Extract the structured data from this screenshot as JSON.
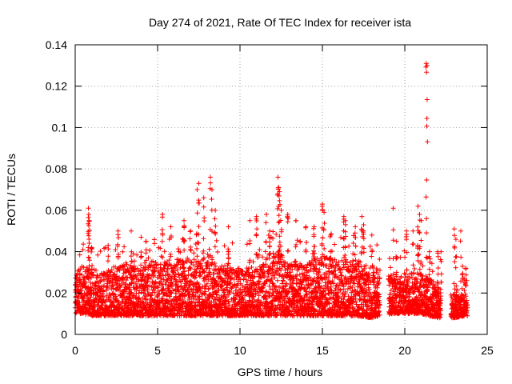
{
  "chart_data": {
    "type": "scatter",
    "title": "Day 274 of 2021, Rate Of TEC Index for receiver ista",
    "xlabel": "GPS time / hours",
    "ylabel": "ROTI / TECUs",
    "xlim": [
      0,
      25
    ],
    "ylim": [
      0,
      0.14
    ],
    "xticks": [
      0,
      5,
      10,
      15,
      20,
      25
    ],
    "yticks": [
      0,
      0.02,
      0.04,
      0.06,
      0.08,
      0.1,
      0.12,
      0.14
    ],
    "xtick_labels": [
      "0",
      "5",
      "10",
      "15",
      "20",
      "25"
    ],
    "ytick_labels": [
      "0",
      "0.02",
      "0.04",
      "0.06",
      "0.08",
      "0.1",
      "0.12",
      "0.14"
    ],
    "grid": true,
    "marker": "+",
    "color": "#ff0000",
    "series": [
      {
        "name": "ROTI",
        "band_coverage_hours": [
          [
            0,
            18.5
          ],
          [
            19.0,
            22.2
          ],
          [
            22.8,
            23.8
          ]
        ],
        "envelope": [
          {
            "x": 0.0,
            "low": 0.01,
            "high": 0.03
          },
          {
            "x": 0.5,
            "low": 0.01,
            "high": 0.034
          },
          {
            "x": 1.0,
            "low": 0.009,
            "high": 0.03
          },
          {
            "x": 2.0,
            "low": 0.009,
            "high": 0.032
          },
          {
            "x": 3.0,
            "low": 0.009,
            "high": 0.034
          },
          {
            "x": 4.0,
            "low": 0.009,
            "high": 0.034
          },
          {
            "x": 5.0,
            "low": 0.009,
            "high": 0.036
          },
          {
            "x": 6.0,
            "low": 0.009,
            "high": 0.036
          },
          {
            "x": 7.0,
            "low": 0.009,
            "high": 0.038
          },
          {
            "x": 8.0,
            "low": 0.009,
            "high": 0.036
          },
          {
            "x": 9.0,
            "low": 0.009,
            "high": 0.034
          },
          {
            "x": 10.0,
            "low": 0.009,
            "high": 0.032
          },
          {
            "x": 11.0,
            "low": 0.009,
            "high": 0.034
          },
          {
            "x": 12.0,
            "low": 0.009,
            "high": 0.04
          },
          {
            "x": 13.0,
            "low": 0.009,
            "high": 0.036
          },
          {
            "x": 14.0,
            "low": 0.009,
            "high": 0.034
          },
          {
            "x": 15.0,
            "low": 0.009,
            "high": 0.038
          },
          {
            "x": 16.0,
            "low": 0.009,
            "high": 0.036
          },
          {
            "x": 17.0,
            "low": 0.009,
            "high": 0.036
          },
          {
            "x": 18.0,
            "low": 0.008,
            "high": 0.034
          },
          {
            "x": 19.2,
            "low": 0.01,
            "high": 0.028
          },
          {
            "x": 20.0,
            "low": 0.01,
            "high": 0.03
          },
          {
            "x": 21.0,
            "low": 0.01,
            "high": 0.03
          },
          {
            "x": 22.0,
            "low": 0.008,
            "high": 0.024
          },
          {
            "x": 23.0,
            "low": 0.008,
            "high": 0.02
          },
          {
            "x": 23.7,
            "low": 0.009,
            "high": 0.016
          }
        ],
        "peaks": [
          {
            "x": 0.8,
            "y": 0.061
          },
          {
            "x": 0.82,
            "y": 0.058
          },
          {
            "x": 0.85,
            "y": 0.055
          },
          {
            "x": 1.0,
            "y": 0.042
          },
          {
            "x": 2.0,
            "y": 0.043
          },
          {
            "x": 2.6,
            "y": 0.05
          },
          {
            "x": 3.4,
            "y": 0.05
          },
          {
            "x": 4.0,
            "y": 0.047
          },
          {
            "x": 4.3,
            "y": 0.045
          },
          {
            "x": 5.3,
            "y": 0.058
          },
          {
            "x": 5.8,
            "y": 0.052
          },
          {
            "x": 6.6,
            "y": 0.055
          },
          {
            "x": 7.0,
            "y": 0.05
          },
          {
            "x": 7.4,
            "y": 0.07
          },
          {
            "x": 7.5,
            "y": 0.073
          },
          {
            "x": 7.8,
            "y": 0.066
          },
          {
            "x": 8.2,
            "y": 0.076
          },
          {
            "x": 8.3,
            "y": 0.07
          },
          {
            "x": 8.5,
            "y": 0.06
          },
          {
            "x": 9.3,
            "y": 0.052
          },
          {
            "x": 10.6,
            "y": 0.055
          },
          {
            "x": 11.0,
            "y": 0.057
          },
          {
            "x": 11.6,
            "y": 0.058
          },
          {
            "x": 11.8,
            "y": 0.05
          },
          {
            "x": 12.3,
            "y": 0.076
          },
          {
            "x": 12.35,
            "y": 0.071
          },
          {
            "x": 12.4,
            "y": 0.069
          },
          {
            "x": 12.5,
            "y": 0.06
          },
          {
            "x": 12.9,
            "y": 0.058
          },
          {
            "x": 13.4,
            "y": 0.055
          },
          {
            "x": 14.0,
            "y": 0.052
          },
          {
            "x": 14.5,
            "y": 0.052
          },
          {
            "x": 15.0,
            "y": 0.063
          },
          {
            "x": 15.0,
            "y": 0.06
          },
          {
            "x": 15.1,
            "y": 0.059
          },
          {
            "x": 15.5,
            "y": 0.048
          },
          {
            "x": 16.3,
            "y": 0.057
          },
          {
            "x": 16.4,
            "y": 0.055
          },
          {
            "x": 17.0,
            "y": 0.052
          },
          {
            "x": 17.4,
            "y": 0.057
          },
          {
            "x": 17.5,
            "y": 0.053
          },
          {
            "x": 18.0,
            "y": 0.048
          },
          {
            "x": 19.3,
            "y": 0.061
          },
          {
            "x": 19.5,
            "y": 0.045
          },
          {
            "x": 20.1,
            "y": 0.05
          },
          {
            "x": 20.5,
            "y": 0.05
          },
          {
            "x": 20.8,
            "y": 0.062
          },
          {
            "x": 20.9,
            "y": 0.058
          },
          {
            "x": 21.0,
            "y": 0.055
          },
          {
            "x": 21.3,
            "y": 0.131
          },
          {
            "x": 21.35,
            "y": 0.13
          },
          {
            "x": 21.5,
            "y": 0.04
          },
          {
            "x": 22.0,
            "y": 0.04
          },
          {
            "x": 22.2,
            "y": 0.04
          },
          {
            "x": 23.0,
            "y": 0.051
          },
          {
            "x": 23.1,
            "y": 0.046
          },
          {
            "x": 23.4,
            "y": 0.05
          },
          {
            "x": 23.5,
            "y": 0.033
          },
          {
            "x": 23.6,
            "y": 0.027
          },
          {
            "x": 23.7,
            "y": 0.032
          }
        ]
      }
    ]
  }
}
